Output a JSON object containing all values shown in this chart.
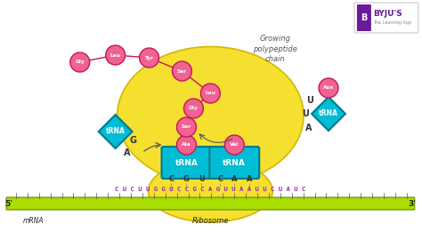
{
  "bg_color": "#ffffff",
  "ribosome_color": "#f5e030",
  "ribosome_edge": "#d4b800",
  "mrna_color": "#aadd00",
  "mrna_edge": "#7a9900",
  "trna_box_color": "#00bcd4",
  "trna_box_edge": "#007a8c",
  "amino_color": "#f06292",
  "amino_edge": "#c2185b",
  "link_color": "#c2185b",
  "text_purple": "#9c27b0",
  "text_dark": "#444444",
  "byju_purple": "#6a1b9a",
  "codon_letters": [
    "C",
    "G",
    "U",
    "C",
    "A",
    "A"
  ],
  "mrna_sequence": "C U C U U G G U C C G C A G U U A A U U C U A U C",
  "mrna_label": "mRNA",
  "ribosome_label": "Ribosome",
  "chain_label": "Growing\npolypeptide\nchain",
  "five_prime": "5'",
  "three_prime": "3'",
  "fig_width": 4.74,
  "fig_height": 2.79,
  "dpi": 100
}
